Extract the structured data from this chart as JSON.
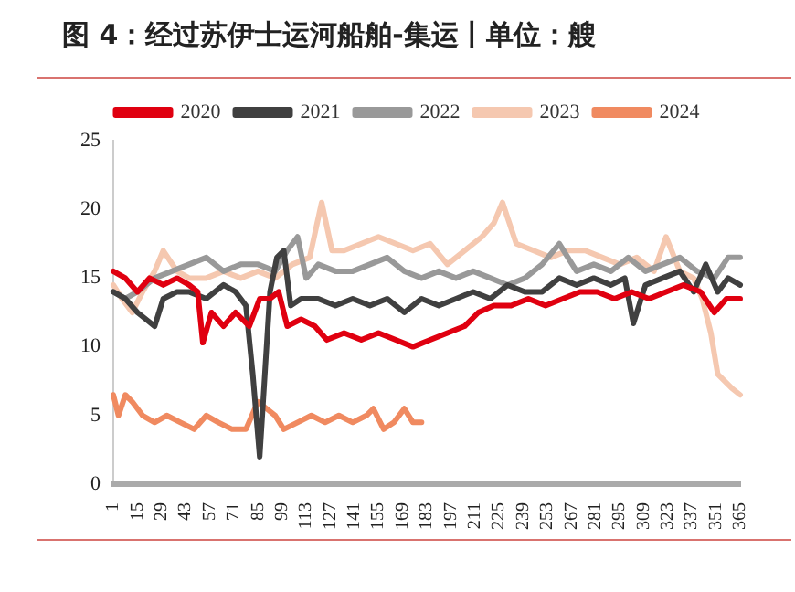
{
  "chart_data": {
    "type": "line",
    "title": "图 4：经过苏伊士运河船舶-集运丨单位：艘",
    "xlim": [
      1,
      365
    ],
    "xticks": [
      1,
      15,
      29,
      43,
      57,
      71,
      85,
      99,
      113,
      127,
      141,
      155,
      169,
      183,
      197,
      211,
      225,
      239,
      253,
      267,
      281,
      295,
      309,
      323,
      337,
      351,
      365
    ],
    "ylim": [
      0,
      25
    ],
    "yticks": [
      0,
      5,
      10,
      15,
      20,
      25
    ],
    "grid": false,
    "legend": "top",
    "marker": "none",
    "line_style": "solid",
    "series": [
      {
        "name": "2020",
        "color": "#e00010",
        "x": [
          1,
          8,
          15,
          22,
          30,
          38,
          45,
          50,
          53,
          58,
          65,
          72,
          80,
          86,
          92,
          97,
          102,
          110,
          118,
          125,
          135,
          145,
          155,
          165,
          175,
          185,
          195,
          205,
          213,
          222,
          232,
          242,
          252,
          262,
          272,
          282,
          292,
          302,
          312,
          322,
          332,
          342,
          350,
          357,
          365
        ],
        "values": [
          15.5,
          15,
          14,
          15,
          14.5,
          15,
          14.5,
          14,
          10.3,
          12.5,
          11.5,
          12.5,
          11.5,
          13.5,
          13.5,
          14,
          11.5,
          12,
          11.5,
          10.5,
          11,
          10.5,
          11,
          10.5,
          10,
          10.5,
          11,
          11.5,
          12.5,
          13,
          13,
          13.5,
          13,
          13.5,
          14,
          14,
          13.5,
          14,
          13.5,
          14,
          14.5,
          14,
          12.5,
          13.5,
          13.5
        ]
      },
      {
        "name": "2021",
        "color": "#404040",
        "x": [
          1,
          8,
          15,
          20,
          25,
          30,
          38,
          45,
          55,
          65,
          72,
          78,
          82,
          86,
          89,
          92,
          96,
          100,
          104,
          110,
          120,
          130,
          140,
          150,
          160,
          170,
          180,
          190,
          200,
          210,
          220,
          230,
          240,
          250,
          260,
          270,
          280,
          290,
          298,
          303,
          310,
          320,
          330,
          338,
          345,
          352,
          358,
          365
        ],
        "values": [
          14,
          13.5,
          12.5,
          12,
          11.5,
          13.5,
          14,
          14,
          13.5,
          14.5,
          14,
          13,
          8,
          2,
          8,
          14,
          16.5,
          17,
          13,
          13.5,
          13.5,
          13,
          13.5,
          13,
          13.5,
          12.5,
          13.5,
          13,
          13.5,
          14,
          13.5,
          14.5,
          14,
          14,
          15,
          14.5,
          15,
          14.5,
          15,
          11.7,
          14.5,
          15,
          15.5,
          14,
          16,
          14,
          15,
          14.5
        ]
      },
      {
        "name": "2022",
        "color": "#999999",
        "x": [
          1,
          8,
          15,
          25,
          35,
          45,
          55,
          65,
          75,
          85,
          95,
          102,
          108,
          113,
          120,
          130,
          140,
          150,
          160,
          170,
          180,
          190,
          200,
          210,
          220,
          230,
          240,
          250,
          260,
          270,
          280,
          290,
          300,
          310,
          320,
          330,
          340,
          350,
          358,
          365
        ],
        "values": [
          14,
          13.5,
          14,
          15,
          15.5,
          16,
          16.5,
          15.5,
          16,
          16,
          15.5,
          17,
          18,
          15,
          16,
          15.5,
          15.5,
          16,
          16.5,
          15.5,
          15,
          15.5,
          15,
          15.5,
          15,
          14.5,
          15,
          16,
          17.5,
          15.5,
          16,
          15.5,
          16.5,
          15.5,
          16,
          16.5,
          15.5,
          15,
          16.5,
          16.5
        ]
      },
      {
        "name": "2023",
        "color": "#f5c8b0",
        "x": [
          1,
          6,
          12,
          18,
          25,
          30,
          38,
          45,
          55,
          65,
          75,
          85,
          95,
          105,
          115,
          122,
          128,
          135,
          145,
          155,
          165,
          175,
          185,
          195,
          205,
          215,
          222,
          227,
          235,
          245,
          255,
          265,
          275,
          285,
          295,
          305,
          315,
          322,
          330,
          338,
          343,
          348,
          352,
          356,
          360,
          365
        ],
        "values": [
          14.5,
          13.5,
          12.5,
          14,
          15.5,
          17,
          15.5,
          15,
          15,
          15.5,
          15,
          15.5,
          15,
          16,
          16.5,
          20.5,
          17,
          17,
          17.5,
          18,
          17.5,
          17,
          17.5,
          16,
          17,
          18,
          19,
          20.5,
          17.5,
          17,
          16.5,
          17,
          17,
          16.5,
          16,
          16.5,
          15.5,
          18,
          15.5,
          15,
          13.5,
          11,
          8,
          7.5,
          7,
          6.5
        ]
      },
      {
        "name": "2024",
        "color": "#f08a60",
        "x": [
          1,
          4,
          8,
          12,
          18,
          25,
          32,
          40,
          48,
          55,
          62,
          70,
          78,
          85,
          90,
          95,
          100,
          108,
          116,
          124,
          132,
          140,
          148,
          152,
          158,
          164,
          170,
          175,
          180
        ],
        "values": [
          6.5,
          5,
          6.5,
          6,
          5,
          4.5,
          5,
          4.5,
          4,
          5,
          4.5,
          4,
          4,
          6,
          5.5,
          5,
          4,
          4.5,
          5,
          4.5,
          5,
          4.5,
          5,
          5.5,
          4,
          4.5,
          5.5,
          4.5,
          4.5
        ]
      }
    ]
  }
}
